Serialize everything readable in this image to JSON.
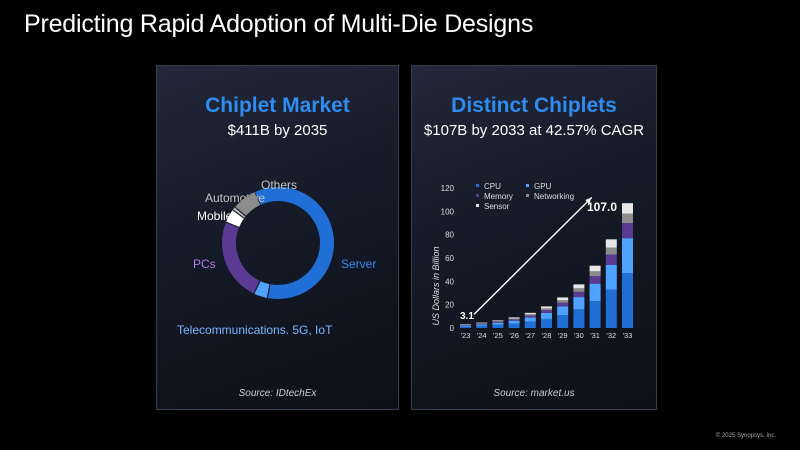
{
  "slide": {
    "title": "Predicting Rapid Adoption of Multi-Die Designs",
    "copyright": "© 2025 Synopsys, Inc."
  },
  "chart_data": [
    {
      "type": "pie",
      "title": "Chiplet Market",
      "subtitle": "$411B by 2035",
      "source": "Source: IDtechEx",
      "slices": [
        {
          "label": "Server",
          "value": 60,
          "color": "#1f6fd6"
        },
        {
          "label": "Telecommunications. 5G, IoT",
          "value": 4,
          "color": "#4da3ff"
        },
        {
          "label": "PCs",
          "value": 24,
          "color": "#5b3a93"
        },
        {
          "label": "Mobile",
          "value": 4,
          "color": "#ffffff"
        },
        {
          "label": "Automotive",
          "value": 1,
          "color": "#bdbdbd"
        },
        {
          "label": "Others",
          "value": 7,
          "color": "#8c8c8c"
        }
      ]
    },
    {
      "type": "bar",
      "stacked": true,
      "title": "Distinct Chiplets",
      "subtitle": "$107B by 2033 at 42.57% CAGR",
      "source": "Source: market.us",
      "ylabel": "US Dollars in Billion",
      "ylim": [
        0,
        120
      ],
      "yticks": [
        "0",
        "20",
        "40",
        "60",
        "80",
        "100",
        "120"
      ],
      "categories": [
        "'23",
        "'24",
        "'25",
        "'26",
        "'27",
        "'28",
        "'29",
        "'30",
        "'31",
        "'32",
        "'33"
      ],
      "series": [
        {
          "name": "CPU",
          "color": "#1f6fd6",
          "values": [
            1.3,
            2.0,
            2.8,
            3.8,
            5.5,
            7.8,
            11,
            16,
            23,
            33,
            47
          ]
        },
        {
          "name": "GPU",
          "color": "#4da3ff",
          "values": [
            0.8,
            1.2,
            1.8,
            2.5,
            3.6,
            5.2,
            7.5,
            10.5,
            15,
            21,
            30
          ]
        },
        {
          "name": "Memory",
          "color": "#5b3a93",
          "values": [
            0.4,
            0.6,
            0.8,
            1.1,
            1.6,
            2.3,
            3.2,
            4.5,
            6.4,
            9,
            13
          ]
        },
        {
          "name": "Networking",
          "color": "#8c8c8c",
          "values": [
            0.3,
            0.4,
            0.5,
            0.8,
            1.1,
            1.5,
            2.1,
            3.0,
            4.2,
            6,
            8
          ]
        },
        {
          "name": "Sensor",
          "color": "#e6e6e6",
          "values": [
            0.3,
            0.4,
            0.6,
            0.9,
            1.2,
            1.7,
            2.4,
            3.4,
            4.8,
            7,
            9
          ]
        }
      ],
      "annotations": {
        "start_value": "3.1",
        "end_value": "107.0"
      }
    }
  ]
}
